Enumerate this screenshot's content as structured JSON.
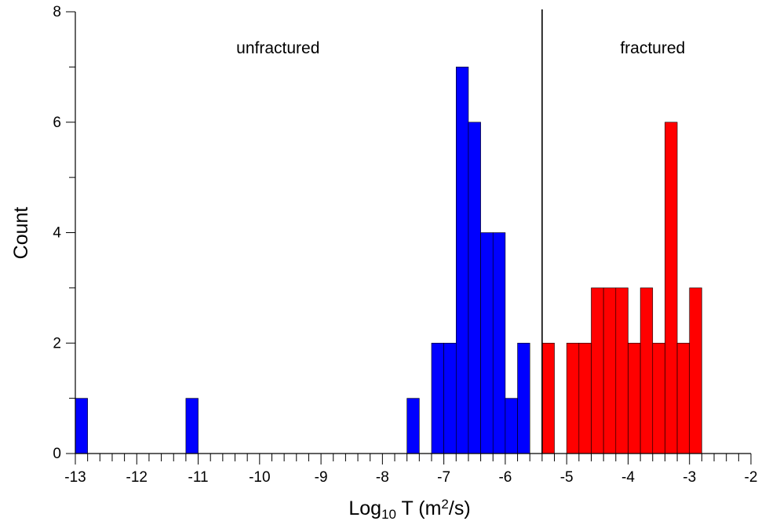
{
  "chart_data": {
    "type": "bar",
    "xlabel": {
      "main": "Log",
      "sub": "10",
      "rest": " T (m",
      "sup": "2",
      "end": "/s)"
    },
    "ylabel": "Count",
    "xlim": [
      -13,
      -2
    ],
    "ylim": [
      0,
      8
    ],
    "xticks": [
      -13,
      -12,
      -11,
      -10,
      -9,
      -8,
      -7,
      -6,
      -5,
      -4,
      -3,
      -2
    ],
    "xtick_labels": [
      "-13",
      "-12",
      "-11",
      "-10",
      "-9",
      "-8",
      "-7",
      "-6",
      "-5",
      "-4",
      "-3",
      "-2"
    ],
    "yticks": [
      0,
      2,
      4,
      6,
      8
    ],
    "ytick_labels": [
      "0",
      "2",
      "4",
      "6",
      "8"
    ],
    "bin_width": 0.2,
    "divider_x": -5.4,
    "annotations": [
      {
        "text": "unfractured",
        "x": -9.7,
        "y": 7.25
      },
      {
        "text": "fractured",
        "x": -3.6,
        "y": 7.25
      }
    ],
    "series": [
      {
        "color": "#0000ff",
        "bins": [
          {
            "x0": -13.0,
            "value": 1
          },
          {
            "x0": -11.2,
            "value": 1
          },
          {
            "x0": -7.6,
            "value": 1
          },
          {
            "x0": -7.2,
            "value": 2
          },
          {
            "x0": -7.0,
            "value": 2
          },
          {
            "x0": -6.8,
            "value": 7
          },
          {
            "x0": -6.6,
            "value": 6
          },
          {
            "x0": -6.4,
            "value": 4
          },
          {
            "x0": -6.2,
            "value": 4
          },
          {
            "x0": -6.0,
            "value": 1
          },
          {
            "x0": -5.8,
            "value": 2
          }
        ]
      },
      {
        "color": "#ff0000",
        "bins": [
          {
            "x0": -5.4,
            "value": 2
          },
          {
            "x0": -5.0,
            "value": 2
          },
          {
            "x0": -4.8,
            "value": 2
          },
          {
            "x0": -4.6,
            "value": 3
          },
          {
            "x0": -4.4,
            "value": 3
          },
          {
            "x0": -4.2,
            "value": 3
          },
          {
            "x0": -4.0,
            "value": 2
          },
          {
            "x0": -3.8,
            "value": 3
          },
          {
            "x0": -3.6,
            "value": 2
          },
          {
            "x0": -3.4,
            "value": 6
          },
          {
            "x0": -3.2,
            "value": 2
          },
          {
            "x0": -3.0,
            "value": 3
          }
        ]
      }
    ]
  }
}
